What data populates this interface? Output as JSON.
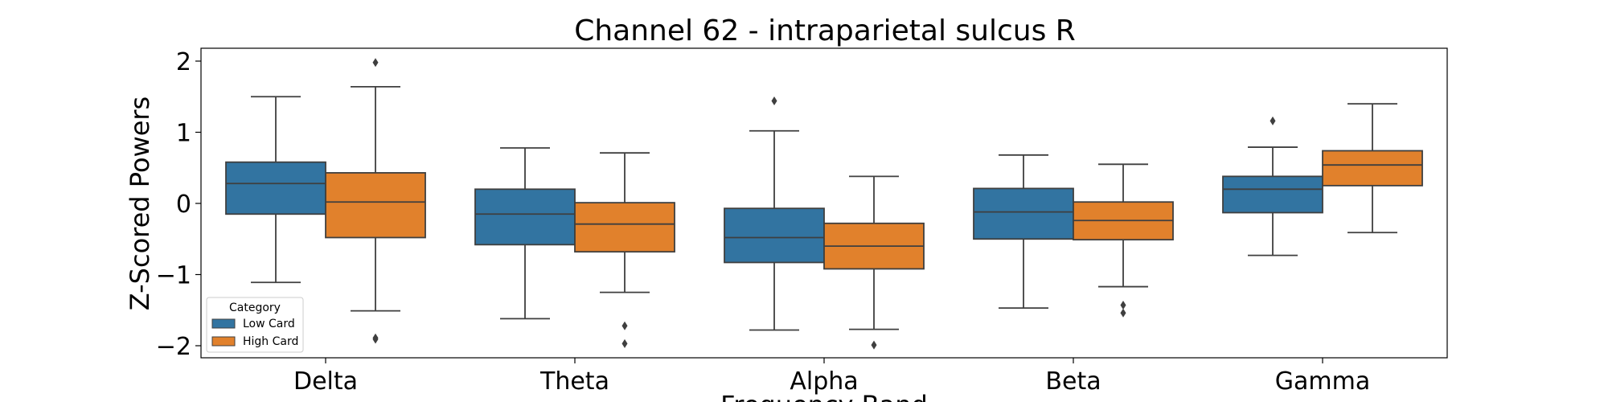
{
  "chart_data": {
    "type": "box",
    "title": "Channel 62 - intraparietal sulcus R",
    "xlabel": "Frequency Band",
    "ylabel": "Z-Scored Powers",
    "ylim": [
      -2.18,
      2.18
    ],
    "yticks": [
      -2,
      -1,
      0,
      1,
      2
    ],
    "ytick_labels": [
      "−2",
      "−1",
      "0",
      "1",
      "2"
    ],
    "categories": [
      "Delta",
      "Theta",
      "Alpha",
      "Beta",
      "Gamma"
    ],
    "legend": {
      "title": "Category",
      "placement": "lower-left"
    },
    "series": [
      {
        "name": "Low Card",
        "color": "#3274a1",
        "boxes": [
          {
            "whisker_low": -1.11,
            "q1": -0.15,
            "median": 0.28,
            "q3": 0.58,
            "whisker_high": 1.5,
            "outliers": []
          },
          {
            "whisker_low": -1.62,
            "q1": -0.58,
            "median": -0.15,
            "q3": 0.2,
            "whisker_high": 0.78,
            "outliers": []
          },
          {
            "whisker_low": -1.78,
            "q1": -0.83,
            "median": -0.48,
            "q3": -0.07,
            "whisker_high": 1.02,
            "outliers": [
              1.44
            ]
          },
          {
            "whisker_low": -1.47,
            "q1": -0.5,
            "median": -0.12,
            "q3": 0.21,
            "whisker_high": 0.68,
            "outliers": []
          },
          {
            "whisker_low": -0.73,
            "q1": -0.13,
            "median": 0.2,
            "q3": 0.38,
            "whisker_high": 0.79,
            "outliers": [
              1.16
            ]
          }
        ]
      },
      {
        "name": "High Card",
        "color": "#e1812c",
        "boxes": [
          {
            "whisker_low": -1.51,
            "q1": -0.48,
            "median": 0.02,
            "q3": 0.43,
            "whisker_high": 1.64,
            "outliers": [
              1.98,
              -1.89,
              -1.91
            ]
          },
          {
            "whisker_low": -1.25,
            "q1": -0.68,
            "median": -0.29,
            "q3": 0.01,
            "whisker_high": 0.71,
            "outliers": [
              -1.72,
              -1.97
            ]
          },
          {
            "whisker_low": -1.77,
            "q1": -0.92,
            "median": -0.6,
            "q3": -0.28,
            "whisker_high": 0.38,
            "outliers": [
              -1.99
            ]
          },
          {
            "whisker_low": -1.17,
            "q1": -0.51,
            "median": -0.24,
            "q3": 0.02,
            "whisker_high": 0.55,
            "outliers": [
              -1.43,
              -1.54
            ]
          },
          {
            "whisker_low": -0.41,
            "q1": 0.25,
            "median": 0.54,
            "q3": 0.74,
            "whisker_high": 1.4,
            "outliers": []
          }
        ]
      }
    ]
  }
}
